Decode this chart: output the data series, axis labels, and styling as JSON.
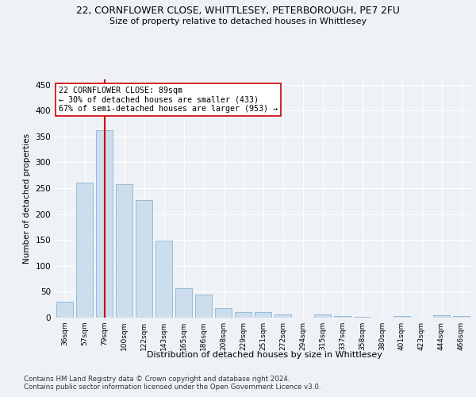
{
  "title_line1": "22, CORNFLOWER CLOSE, WHITTLESEY, PETERBOROUGH, PE7 2FU",
  "title_line2": "Size of property relative to detached houses in Whittlesey",
  "xlabel": "Distribution of detached houses by size in Whittlesey",
  "ylabel": "Number of detached properties",
  "categories": [
    "36sqm",
    "57sqm",
    "79sqm",
    "100sqm",
    "122sqm",
    "143sqm",
    "165sqm",
    "186sqm",
    "208sqm",
    "229sqm",
    "251sqm",
    "272sqm",
    "294sqm",
    "315sqm",
    "337sqm",
    "358sqm",
    "380sqm",
    "401sqm",
    "423sqm",
    "444sqm",
    "466sqm"
  ],
  "values": [
    30,
    260,
    362,
    257,
    227,
    148,
    57,
    45,
    19,
    10,
    10,
    6,
    0,
    6,
    3,
    2,
    0,
    3,
    0,
    5,
    3
  ],
  "bar_color": "#ccdded",
  "bar_edge_color": "#7aaac8",
  "vline_x": 2,
  "vline_color": "#cc0000",
  "annotation_text": "22 CORNFLOWER CLOSE: 89sqm\n← 30% of detached houses are smaller (433)\n67% of semi-detached houses are larger (953) →",
  "annotation_box_color": "#ffffff",
  "annotation_box_edge_color": "#cc0000",
  "ylim": [
    0,
    460
  ],
  "yticks": [
    0,
    50,
    100,
    150,
    200,
    250,
    300,
    350,
    400,
    450
  ],
  "bg_color": "#eef2f7",
  "grid_color": "#ffffff",
  "footer_line1": "Contains HM Land Registry data © Crown copyright and database right 2024.",
  "footer_line2": "Contains public sector information licensed under the Open Government Licence v3.0."
}
